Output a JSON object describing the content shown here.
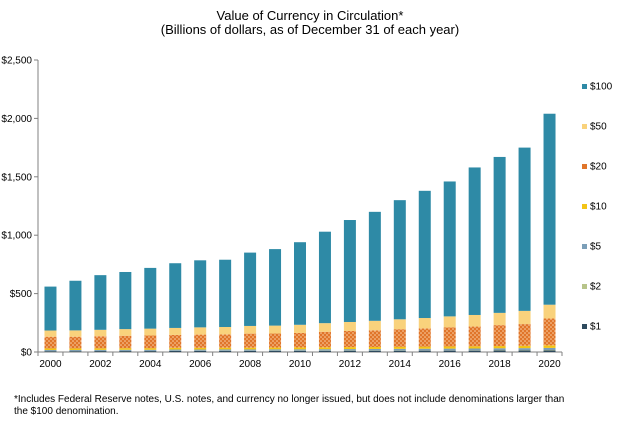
{
  "chart_data": {
    "type": "bar",
    "stacked": true,
    "title": "Value of Currency in Circulation*",
    "subtitle": "(Billions of dollars, as of December 31 of each year)",
    "xlabel": "",
    "ylabel": "",
    "ylim": [
      0,
      2500
    ],
    "yticks": [
      "$0",
      "$500",
      "$1,000",
      "$1,500",
      "$2,000",
      "$2,500"
    ],
    "ytick_values": [
      0,
      500,
      1000,
      1500,
      2000,
      2500
    ],
    "xticks": [
      "2000",
      "2002",
      "2004",
      "2006",
      "2008",
      "2010",
      "2012",
      "2014",
      "2016",
      "2018",
      "2020"
    ],
    "grid": false,
    "legend_position": "right",
    "categories": [
      "2000",
      "2001",
      "2002",
      "2003",
      "2004",
      "2005",
      "2006",
      "2007",
      "2008",
      "2009",
      "2010",
      "2011",
      "2012",
      "2013",
      "2014",
      "2015",
      "2016",
      "2017",
      "2018",
      "2019",
      "2020"
    ],
    "series": [
      {
        "name": "$1",
        "color": "#2e4a5e",
        "values": [
          7,
          7,
          8,
          8,
          8,
          9,
          9,
          9,
          9,
          10,
          10,
          10,
          11,
          11,
          11,
          12,
          12,
          12,
          13,
          13,
          14
        ]
      },
      {
        "name": "$2",
        "color": "#b7c48a",
        "values": [
          1,
          1,
          1,
          1,
          1,
          2,
          2,
          2,
          2,
          2,
          2,
          2,
          2,
          2,
          2,
          2,
          2,
          3,
          3,
          3,
          3
        ]
      },
      {
        "name": "$5",
        "color": "#7c9fb8",
        "values": [
          9,
          9,
          9,
          10,
          10,
          10,
          10,
          11,
          11,
          11,
          11,
          12,
          12,
          13,
          14,
          14,
          15,
          15,
          16,
          17,
          18
        ]
      },
      {
        "name": "$10",
        "color": "#f3c416",
        "values": [
          14,
          14,
          14,
          14,
          14,
          15,
          15,
          15,
          15,
          15,
          16,
          16,
          17,
          17,
          18,
          18,
          19,
          19,
          19,
          20,
          22
        ]
      },
      {
        "name": "$20",
        "color": "#e0752a",
        "values": [
          100,
          100,
          103,
          106,
          108,
          110,
          113,
          114,
          120,
          120,
          124,
          133,
          138,
          143,
          150,
          156,
          163,
          169,
          179,
          186,
          230
        ]
      },
      {
        "name": "$50",
        "color": "#f9d27c",
        "values": [
          53,
          54,
          55,
          57,
          59,
          60,
          62,
          63,
          66,
          68,
          70,
          74,
          77,
          81,
          85,
          89,
          94,
          99,
          105,
          113,
          118
        ]
      },
      {
        "name": "$100",
        "color": "#2e8aa6",
        "values": [
          376,
          425,
          468,
          489,
          520,
          554,
          574,
          576,
          628,
          655,
          707,
          783,
          873,
          933,
          1020,
          1089,
          1155,
          1263,
          1335,
          1398,
          1635
        ]
      }
    ],
    "legend_order": [
      "$100",
      "$50",
      "$20",
      "$10",
      "$5",
      "$2",
      "$1"
    ]
  },
  "footnote": "*Includes Federal Reserve notes, U.S. notes, and currency no longer issued, but does not include denominations larger than the $100 denomination."
}
